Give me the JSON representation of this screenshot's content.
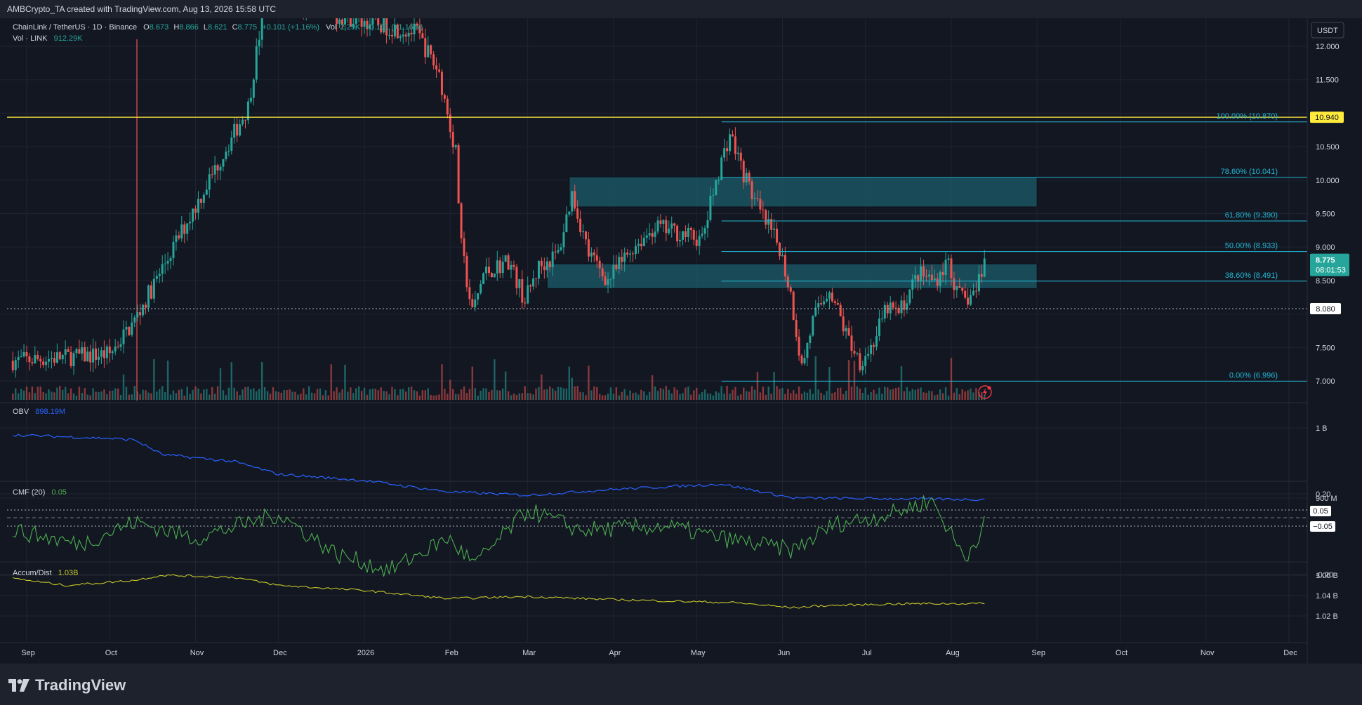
{
  "header": {
    "title": "AMBCrypto_TA created with TradingView.com, Aug 13, 2026 15:58 UTC"
  },
  "branding": {
    "logo_text": "TradingView"
  },
  "colors": {
    "bg": "#131722",
    "bull": "#26a69a",
    "bear": "#ef5350",
    "obv": "#2962ff",
    "cmf": "#4caf50",
    "ad": "#c8c82a",
    "fib": "#22b8d4",
    "resistance": "#ffeb3b",
    "zone_fill": "#1b5e6e",
    "zone_border": "#5ec5d6"
  },
  "legend": {
    "symbol": "ChainLink / TetherUS · 1D · Binance",
    "o_label": "O",
    "o": "8.673",
    "h_label": "H",
    "h": "8.866",
    "l_label": "L",
    "l": "8.621",
    "c_label": "C",
    "c": "8.775",
    "chg": "+0.101 (+1.16%)",
    "vol_label": "Vol",
    "vol_val": "2.29K",
    "vol_chg": "+0.101 (+1.16%)",
    "vol_link": "Vol · LINK",
    "vol_link_val": "912.29K"
  },
  "panes": {
    "obv_label": "OBV",
    "obv_value": "898.19M",
    "cmf_label": "CMF (20)",
    "cmf_value": "0.05",
    "ad_label": "Accum/Dist",
    "ad_value": "1.03B"
  },
  "axis": {
    "currency": "USDT",
    "price_ticks": [
      "12.000",
      "11.500",
      "10.500",
      "10.000",
      "9.500",
      "9.000",
      "8.500",
      "7.500",
      "7.000"
    ],
    "obv_ticks": [
      "1 B",
      "900 M"
    ],
    "cmf_ticks": [
      "0.20",
      "-0.20"
    ],
    "ad_ticks": [
      "1.06 B",
      "1.04 B",
      "1.02 B"
    ],
    "time_labels": [
      "Sep",
      "Oct",
      "Nov",
      "Dec",
      "2026",
      "Feb",
      "Mar",
      "Apr",
      "May",
      "Jun",
      "Jul",
      "Aug",
      "Sep",
      "Oct",
      "Nov",
      "Dec"
    ]
  },
  "badges": {
    "resistance": "10.940",
    "current_price": "8.775",
    "countdown": "08:01:53",
    "support": "8.080",
    "cmf_now": "0.05",
    "cmf_minus": "−0.05"
  },
  "chart_data": {
    "type": "candlestick",
    "symbol": "LINKUSDT",
    "price_range": [
      6.85,
      12.2
    ],
    "fib_levels": [
      {
        "label": "100.00% (10.870)",
        "price": 10.87
      },
      {
        "label": "78.60% (10.041)",
        "price": 10.041
      },
      {
        "label": "61.80% (9.390)",
        "price": 9.39
      },
      {
        "label": "50.00% (8.933)",
        "price": 8.933
      },
      {
        "label": "38.60% (8.491)",
        "price": 8.491
      },
      {
        "label": "0.00% (6.996)",
        "price": 6.996
      }
    ],
    "horizontal_lines": [
      {
        "price": 10.94
      },
      {
        "price": 8.08
      }
    ],
    "zones": [
      {
        "from_date": "2026-03-16",
        "to_date": "2026-09-01",
        "low": 9.6,
        "high": 10.05
      },
      {
        "from_date": "2026-03-08",
        "to_date": "2026-09-01",
        "low": 8.38,
        "high": 8.75
      }
    ],
    "price_path": [
      [
        "2025-08-27",
        7.3
      ],
      [
        "2025-10-01",
        7.4
      ],
      [
        "2025-10-10",
        7.9
      ],
      [
        "2025-11-20",
        11.1
      ],
      [
        "2025-11-26",
        12.7
      ],
      [
        "2026-01-20",
        12.2
      ],
      [
        "2026-01-28",
        11.6
      ],
      [
        "2026-02-03",
        10.4
      ],
      [
        "2026-02-05",
        9.0
      ],
      [
        "2026-02-09",
        8.0
      ],
      [
        "2026-02-13",
        8.6
      ],
      [
        "2026-02-22",
        8.8
      ],
      [
        "2026-02-28",
        8.2
      ],
      [
        "2026-03-05",
        8.7
      ],
      [
        "2026-03-12",
        8.9
      ],
      [
        "2026-03-17",
        9.8
      ],
      [
        "2026-03-23",
        8.9
      ],
      [
        "2026-03-30",
        8.5
      ],
      [
        "2026-04-08",
        9.0
      ],
      [
        "2026-04-16",
        9.3
      ],
      [
        "2026-04-26",
        9.2
      ],
      [
        "2026-05-03",
        9.1
      ],
      [
        "2026-05-08",
        10.0
      ],
      [
        "2026-05-13",
        10.7
      ],
      [
        "2026-05-18",
        10.1
      ],
      [
        "2026-05-24",
        9.5
      ],
      [
        "2026-05-31",
        9.0
      ],
      [
        "2026-06-04",
        8.3
      ],
      [
        "2026-06-08",
        7.2
      ],
      [
        "2026-06-12",
        7.9
      ],
      [
        "2026-06-18",
        8.4
      ],
      [
        "2026-06-24",
        7.7
      ],
      [
        "2026-06-29",
        7.3
      ],
      [
        "2026-07-03",
        7.5
      ],
      [
        "2026-07-09",
        8.1
      ],
      [
        "2026-07-13",
        8.0
      ],
      [
        "2026-07-20",
        8.6
      ],
      [
        "2026-07-26",
        8.5
      ],
      [
        "2026-07-31",
        8.8
      ],
      [
        "2026-08-03",
        8.3
      ],
      [
        "2026-08-06",
        8.2
      ],
      [
        "2026-08-10",
        8.35
      ],
      [
        "2026-08-12",
        8.67
      ],
      [
        "2026-08-13",
        8.775
      ]
    ],
    "obv_path": [
      [
        "2025-08-27",
        0.99
      ],
      [
        "2025-10-01",
        0.985
      ],
      [
        "2025-10-10",
        0.983
      ],
      [
        "2025-10-20",
        0.962
      ],
      [
        "2025-11-15",
        0.952
      ],
      [
        "2025-12-01",
        0.934
      ],
      [
        "2026-01-01",
        0.925
      ],
      [
        "2026-01-31",
        0.909
      ],
      [
        "2026-03-01",
        0.904
      ],
      [
        "2026-03-30",
        0.912
      ],
      [
        "2026-05-10",
        0.92
      ],
      [
        "2026-06-05",
        0.9
      ],
      [
        "2026-08-13",
        0.898
      ]
    ],
    "cmf_path": [
      [
        "2025-08-27",
        0.02
      ],
      [
        "2025-09-20",
        -0.05
      ],
      [
        "2025-10-10",
        0.06
      ],
      [
        "2025-11-01",
        -0.02
      ],
      [
        "2025-12-01",
        0.1
      ],
      [
        "2025-12-22",
        -0.1
      ],
      [
        "2026-01-10",
        -0.18
      ],
      [
        "2026-01-31",
        -0.02
      ],
      [
        "2026-02-10",
        -0.15
      ],
      [
        "2026-03-01",
        0.12
      ],
      [
        "2026-03-20",
        0.02
      ],
      [
        "2026-04-20",
        0.04
      ],
      [
        "2026-05-10",
        -0.02
      ],
      [
        "2026-06-05",
        -0.08
      ],
      [
        "2026-06-20",
        0.05
      ],
      [
        "2026-07-10",
        0.1
      ],
      [
        "2026-07-25",
        0.17
      ],
      [
        "2026-08-06",
        -0.12
      ],
      [
        "2026-08-13",
        0.05
      ]
    ],
    "ad_path": [
      [
        "2025-08-27",
        1.057
      ],
      [
        "2025-09-15",
        1.05
      ],
      [
        "2025-10-10",
        1.055
      ],
      [
        "2025-10-20",
        1.06
      ],
      [
        "2025-11-15",
        1.058
      ],
      [
        "2025-12-01",
        1.05
      ],
      [
        "2026-01-01",
        1.045
      ],
      [
        "2026-01-31",
        1.037
      ],
      [
        "2026-03-01",
        1.039
      ],
      [
        "2026-04-01",
        1.036
      ],
      [
        "2026-05-15",
        1.033
      ],
      [
        "2026-06-05",
        1.028
      ],
      [
        "2026-06-15",
        1.03
      ],
      [
        "2026-07-15",
        1.032
      ],
      [
        "2026-08-13",
        1.0322
      ]
    ]
  }
}
